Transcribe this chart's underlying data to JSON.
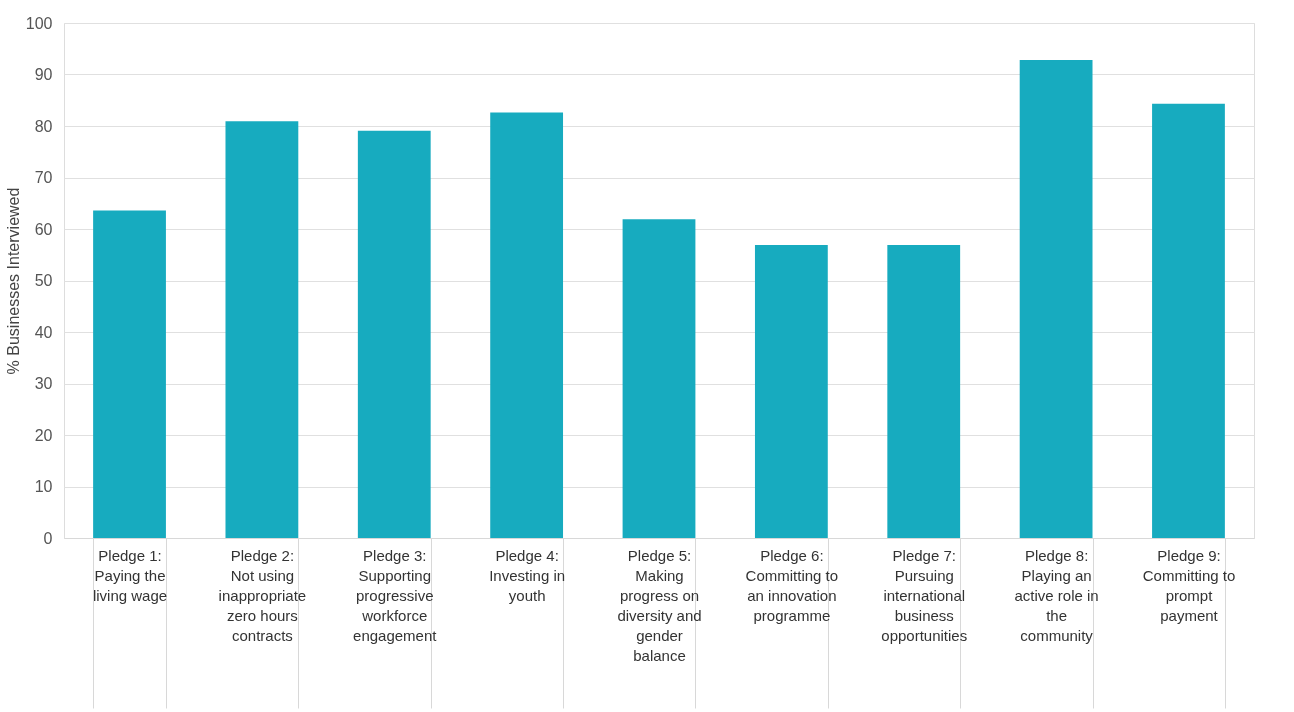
{
  "chart_data": {
    "type": "bar",
    "ylabel": "% Businesses Interviewed",
    "categories": [
      "Pledge 1:\nPaying the\nliving wage",
      "Pledge 2:\nNot using\ninappropriate\nzero hours\ncontracts",
      "Pledge 3:\nSupporting\nprogressive\nworkforce\nengagement",
      "Pledge 4:\nInvesting in\nyouth",
      "Pledge 5:\nMaking\nprogress on\ndiversity and\ngender\nbalance",
      "Pledge 6:\nCommitting to\nan innovation\nprogramme",
      "Pledge 7:\nPursuing\ninternational\nbusiness\nopportunities",
      "Pledge 8:\nPlaying an\nactive role in\nthe\ncommunity",
      "Pledge 9:\nCommitting to\nprompt\npayment"
    ],
    "values": [
      63.6,
      80.9,
      79.1,
      82.6,
      61.9,
      56.9,
      56.9,
      92.8,
      84.3
    ],
    "color": "#17abbf",
    "ylim": [
      0,
      100
    ],
    "yticks": [
      0,
      10,
      20,
      30,
      40,
      50,
      60,
      70,
      80,
      90,
      100
    ],
    "grid": "y"
  }
}
